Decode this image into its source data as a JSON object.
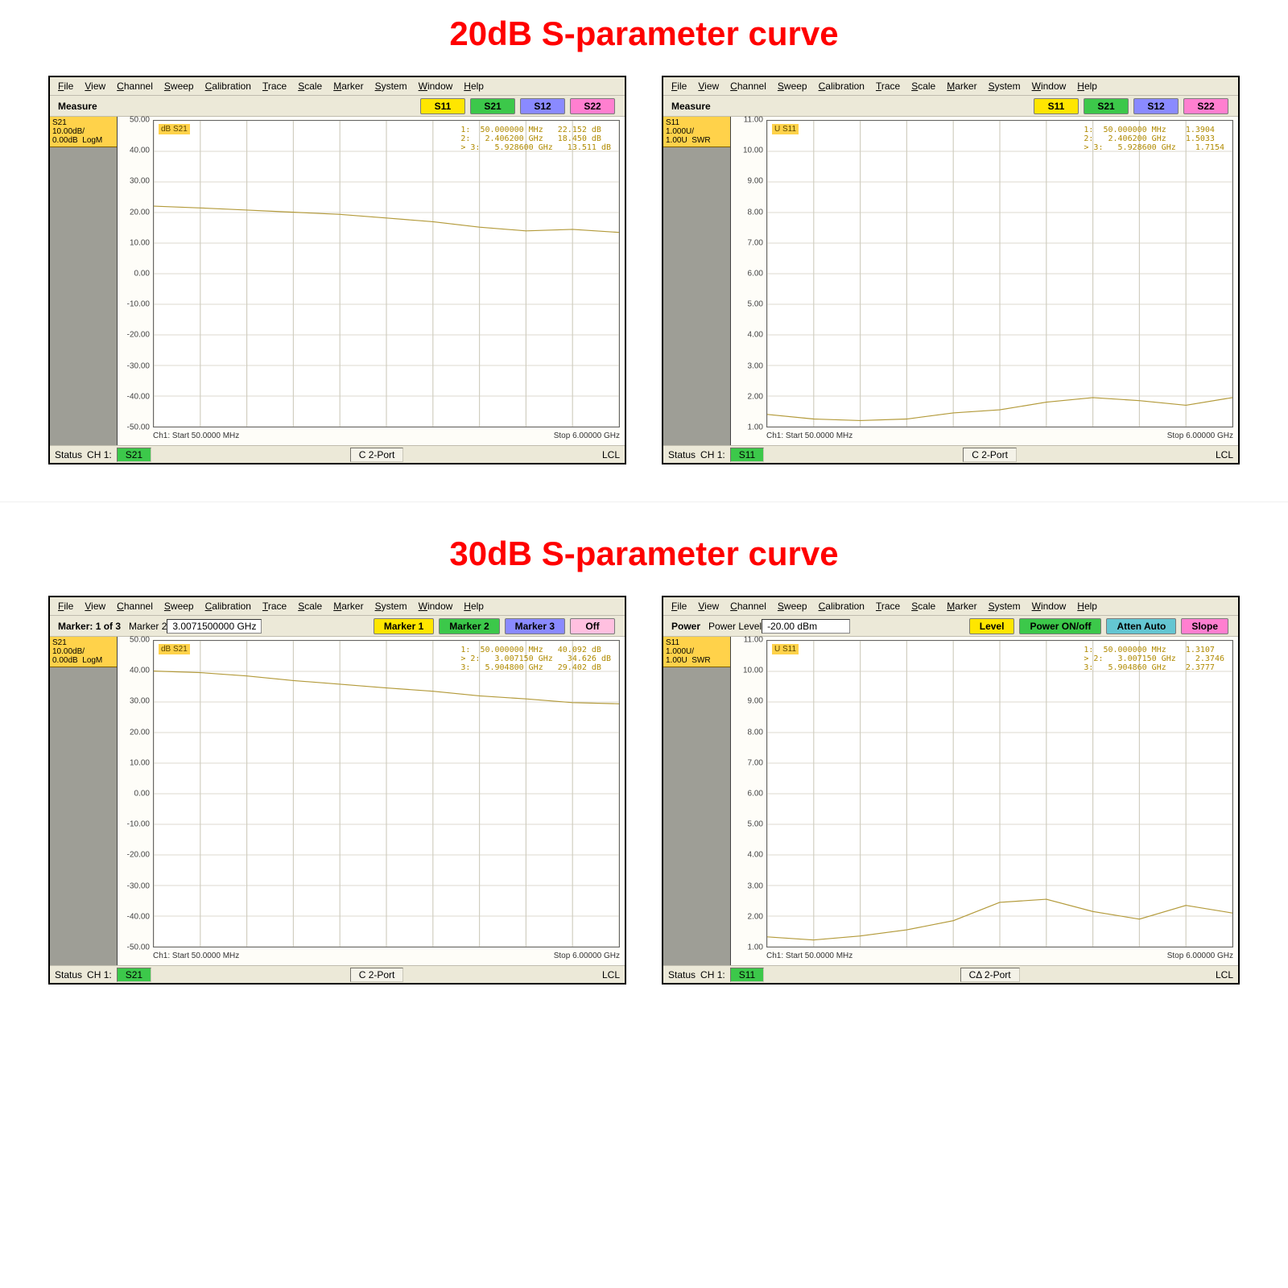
{
  "palette": {
    "title_color": "#ff0000",
    "window_bg": "#ece9d8",
    "sidebar_bg": "#9e9e96",
    "plot_bg": "#ffffff",
    "grid_color": "#d0cdbf",
    "curve_color": "#b39a3a",
    "btn_yellow": "#ffe600",
    "btn_green": "#3cc84a",
    "btn_blue": "#8a8aff",
    "btn_pink": "#ff7fd0",
    "btn_teal": "#64c6d2"
  },
  "titles": {
    "t20": "20dB S-parameter curve",
    "t30": "30dB S-parameter curve"
  },
  "menu_items": [
    "File",
    "View",
    "Channel",
    "Sweep",
    "Calibration",
    "Trace",
    "Scale",
    "Marker",
    "System",
    "Window",
    "Help"
  ],
  "sparam_labels": {
    "s11": "S11",
    "s21": "S21",
    "s12": "S12",
    "s22": "S22"
  },
  "panel_20_s21": {
    "toolbar_label": "Measure",
    "trace_badge": "S21\n10.00dB/\n0.00dB  LogM",
    "trace_hdr": "dB S21",
    "xaxis": {
      "start": "Ch1: Start  50.0000 MHz",
      "stop": "Stop  6.00000 GHz"
    },
    "status": {
      "left": "Status",
      "ch": "CH 1:",
      "val": "S21",
      "c": "C  2-Port",
      "r": "LCL"
    },
    "chart": {
      "ymin": -50,
      "ymax": 50,
      "ystep": 10,
      "nx": 10,
      "y_ticks": [
        "50.00",
        "40.00",
        "30.00",
        "20.00",
        "10.00",
        "0.00",
        "-10.00",
        "-20.00",
        "-30.00",
        "-40.00",
        "-50.00"
      ],
      "curve": [
        22.1,
        21.5,
        20.8,
        20.1,
        19.4,
        18.2,
        17,
        15.2,
        14,
        14.5,
        13.5
      ],
      "marker_lines": [
        "1:  50.000000 MHz   22.152 dB",
        "2:   2.406200 GHz   18.450 dB",
        "> 3:   5.928600 GHz   13.511 dB"
      ]
    }
  },
  "panel_20_s11": {
    "toolbar_label": "Measure",
    "trace_badge": "S11\n1.000U/\n1.00U  SWR",
    "trace_hdr": "U S11",
    "xaxis": {
      "start": "Ch1: Start  50.0000 MHz",
      "stop": "Stop  6.00000 GHz"
    },
    "status": {
      "left": "Status",
      "ch": "CH 1:",
      "val": "S11",
      "c": "C  2-Port",
      "r": "LCL"
    },
    "chart": {
      "ymin": 1,
      "ymax": 11,
      "ystep": 1,
      "nx": 10,
      "y_ticks": [
        "11.00",
        "10.00",
        "9.00",
        "8.00",
        "7.00",
        "6.00",
        "5.00",
        "4.00",
        "3.00",
        "2.00",
        "1.00"
      ],
      "curve": [
        1.4,
        1.25,
        1.2,
        1.25,
        1.45,
        1.55,
        1.8,
        1.95,
        1.85,
        1.7,
        1.95
      ],
      "marker_lines": [
        "1:  50.000000 MHz    1.3904",
        "2:   2.406200 GHz    1.5033",
        "> 3:   5.928600 GHz    1.7154"
      ]
    }
  },
  "panel_30_s21": {
    "toolbar_label": "Marker: 1 of 3",
    "toolbar_mid_label": "Marker 2",
    "toolbar_mid_value": "3.0071500000 GHz",
    "toolbar_btns": [
      {
        "t": "Marker 1",
        "c": "yellow"
      },
      {
        "t": "Marker 2",
        "c": "green"
      },
      {
        "t": "Marker 3",
        "c": "blue"
      },
      {
        "t": "Off",
        "c": "off"
      }
    ],
    "trace_badge": "S21\n10.00dB/\n0.00dB  LogM",
    "trace_hdr": "dB S21",
    "xaxis": {
      "start": "Ch1: Start  50.0000 MHz",
      "stop": "Stop  6.00000 GHz"
    },
    "status": {
      "left": "Status",
      "ch": "CH 1:",
      "val": "S21",
      "c": "C  2-Port",
      "r": "LCL"
    },
    "chart": {
      "ymin": -50,
      "ymax": 50,
      "ystep": 10,
      "nx": 10,
      "y_ticks": [
        "50.00",
        "40.00",
        "30.00",
        "20.00",
        "10.00",
        "0.00",
        "-10.00",
        "-20.00",
        "-30.00",
        "-40.00",
        "-50.00"
      ],
      "curve": [
        40.1,
        39.6,
        38.5,
        37.0,
        35.8,
        34.6,
        33.5,
        32.0,
        31.0,
        29.8,
        29.4
      ],
      "marker_lines": [
        "1:  50.000000 MHz   40.092 dB",
        "> 2:   3.007150 GHz   34.626 dB",
        "3:   5.904800 GHz   29.402 dB"
      ]
    }
  },
  "panel_30_s11": {
    "toolbar_label": "Power",
    "toolbar_mid_label": "Power Level",
    "toolbar_mid_value": "-20.00 dBm",
    "toolbar_btns": [
      {
        "t": "Level",
        "c": "yellow"
      },
      {
        "t": "Power ON/off",
        "c": "green"
      },
      {
        "t": "Atten Auto",
        "c": "teal"
      },
      {
        "t": "Slope",
        "c": "pink"
      }
    ],
    "trace_badge": "S11\n1.000U/\n1.00U  SWR",
    "trace_hdr": "U S11",
    "xaxis": {
      "start": "Ch1: Start  50.0000 MHz",
      "stop": "Stop  6.00000 GHz"
    },
    "status": {
      "left": "Status",
      "ch": "CH 1:",
      "val": "S11",
      "c": "CΔ 2-Port",
      "r": "LCL"
    },
    "chart": {
      "ymin": 1,
      "ymax": 11,
      "ystep": 1,
      "nx": 10,
      "y_ticks": [
        "11.00",
        "10.00",
        "9.00",
        "8.00",
        "7.00",
        "6.00",
        "5.00",
        "4.00",
        "3.00",
        "2.00",
        "1.00"
      ],
      "curve": [
        1.32,
        1.22,
        1.35,
        1.55,
        1.85,
        2.45,
        2.55,
        2.15,
        1.9,
        2.35,
        2.1
      ],
      "marker_lines": [
        "1:  50.000000 MHz    1.3107",
        "> 2:   3.007150 GHz    2.3746",
        "3:   5.904860 GHz    2.3777"
      ]
    }
  }
}
